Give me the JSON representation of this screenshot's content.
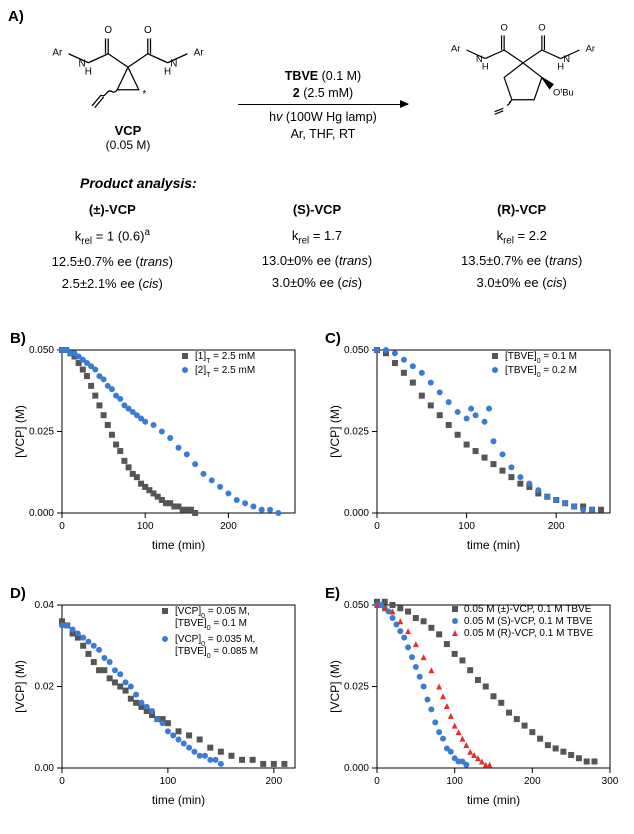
{
  "panelA": {
    "label": "A)",
    "reactant_label": "VCP",
    "reactant_conc": "(0.05 M)",
    "arrow_top_line1": "TBVE (0.1 M)",
    "arrow_top_line2_bold": "2",
    "arrow_top_line2_rest": " (2.5 mM)",
    "arrow_bot_line1_pre": "h",
    "arrow_bot_line1_it": "v",
    "arrow_bot_line1_post": " (100W Hg lamp)",
    "arrow_bot_line2": "Ar, THF, RT",
    "pa_title": "Product analysis:",
    "columns": [
      {
        "head": "(±)-VCP",
        "krel": "k_rel = 1 (0.6)^a",
        "ee_trans": "12.5±0.7% ee (trans)",
        "ee_cis": "2.5±2.1% ee (cis)"
      },
      {
        "head": "(S)-VCP",
        "krel": "k_rel = 1.7",
        "ee_trans": "13.0±0% ee (trans)",
        "ee_cis": "3.0±0% ee (cis)"
      },
      {
        "head": "(R)-VCP",
        "krel": "k_rel = 2.2",
        "ee_trans": "13.5±0.7% ee (trans)",
        "ee_cis": "3.0±0% ee (cis)"
      }
    ]
  },
  "chartCommon": {
    "xlabel": "time (min)",
    "ylabel": "[VCP] (M)",
    "grid_color": "#e0e0e0",
    "bg": "#ffffff",
    "axis_color": "#000000",
    "series_colors": {
      "gray": "#555555",
      "blue": "#3a7bd5",
      "red": "#e03030"
    },
    "marker_size": 3
  },
  "panelB": {
    "label": "B)",
    "xlim": [
      0,
      280
    ],
    "xticks": [
      0,
      100,
      200
    ],
    "ylim": [
      0,
      0.05
    ],
    "yticks": [
      0,
      0.025,
      0.05
    ],
    "ytick_labels": [
      "0.000",
      "0.025",
      "0.050"
    ],
    "legend": [
      {
        "marker": "square",
        "color": "gray",
        "label": "[1]_T = 2.5 mM"
      },
      {
        "marker": "circle",
        "color": "blue",
        "label": "[2]_T = 2.5 mM"
      }
    ],
    "series": [
      {
        "color": "gray",
        "marker": "square",
        "points": [
          [
            0,
            0.05
          ],
          [
            5,
            0.05
          ],
          [
            10,
            0.049
          ],
          [
            15,
            0.048
          ],
          [
            20,
            0.046
          ],
          [
            25,
            0.044
          ],
          [
            30,
            0.042
          ],
          [
            35,
            0.039
          ],
          [
            40,
            0.036
          ],
          [
            45,
            0.033
          ],
          [
            50,
            0.03
          ],
          [
            55,
            0.027
          ],
          [
            60,
            0.024
          ],
          [
            65,
            0.021
          ],
          [
            70,
            0.019
          ],
          [
            75,
            0.016
          ],
          [
            80,
            0.014
          ],
          [
            85,
            0.012
          ],
          [
            90,
            0.011
          ],
          [
            95,
            0.009
          ],
          [
            100,
            0.008
          ],
          [
            105,
            0.007
          ],
          [
            110,
            0.006
          ],
          [
            115,
            0.005
          ],
          [
            120,
            0.004
          ],
          [
            125,
            0.003
          ],
          [
            130,
            0.003
          ],
          [
            135,
            0.002
          ],
          [
            140,
            0.002
          ],
          [
            145,
            0.001
          ],
          [
            150,
            0.001
          ],
          [
            155,
            0.001
          ],
          [
            160,
            0.0
          ]
        ]
      },
      {
        "color": "blue",
        "marker": "circle",
        "points": [
          [
            0,
            0.05
          ],
          [
            5,
            0.05
          ],
          [
            10,
            0.049
          ],
          [
            15,
            0.049
          ],
          [
            20,
            0.048
          ],
          [
            25,
            0.047
          ],
          [
            30,
            0.046
          ],
          [
            35,
            0.045
          ],
          [
            40,
            0.044
          ],
          [
            45,
            0.042
          ],
          [
            50,
            0.041
          ],
          [
            55,
            0.039
          ],
          [
            60,
            0.038
          ],
          [
            65,
            0.036
          ],
          [
            70,
            0.035
          ],
          [
            75,
            0.033
          ],
          [
            80,
            0.032
          ],
          [
            85,
            0.031
          ],
          [
            90,
            0.03
          ],
          [
            95,
            0.029
          ],
          [
            100,
            0.028
          ],
          [
            110,
            0.027
          ],
          [
            120,
            0.025
          ],
          [
            130,
            0.023
          ],
          [
            140,
            0.02
          ],
          [
            150,
            0.018
          ],
          [
            160,
            0.015
          ],
          [
            170,
            0.012
          ],
          [
            180,
            0.01
          ],
          [
            190,
            0.008
          ],
          [
            200,
            0.006
          ],
          [
            210,
            0.004
          ],
          [
            220,
            0.003
          ],
          [
            230,
            0.002
          ],
          [
            240,
            0.001
          ],
          [
            250,
            0.001
          ],
          [
            260,
            0.0
          ]
        ]
      }
    ]
  },
  "panelC": {
    "label": "C)",
    "xlim": [
      0,
      260
    ],
    "xticks": [
      0,
      100,
      200
    ],
    "ylim": [
      0,
      0.05
    ],
    "yticks": [
      0,
      0.025,
      0.05
    ],
    "ytick_labels": [
      "0.000",
      "0.025",
      "0.050"
    ],
    "legend": [
      {
        "marker": "square",
        "color": "gray",
        "label": "[TBVE]_0 = 0.1 M"
      },
      {
        "marker": "circle",
        "color": "blue",
        "label": "[TBVE]_0 = 0.2 M"
      }
    ],
    "series": [
      {
        "color": "gray",
        "marker": "square",
        "points": [
          [
            0,
            0.05
          ],
          [
            10,
            0.049
          ],
          [
            20,
            0.046
          ],
          [
            30,
            0.043
          ],
          [
            40,
            0.04
          ],
          [
            50,
            0.036
          ],
          [
            60,
            0.033
          ],
          [
            70,
            0.03
          ],
          [
            80,
            0.027
          ],
          [
            90,
            0.024
          ],
          [
            100,
            0.021
          ],
          [
            110,
            0.019
          ],
          [
            120,
            0.017
          ],
          [
            130,
            0.015
          ],
          [
            140,
            0.013
          ],
          [
            150,
            0.011
          ],
          [
            160,
            0.009
          ],
          [
            170,
            0.008
          ],
          [
            180,
            0.006
          ],
          [
            190,
            0.005
          ],
          [
            200,
            0.004
          ],
          [
            210,
            0.003
          ],
          [
            220,
            0.002
          ],
          [
            230,
            0.002
          ],
          [
            240,
            0.001
          ],
          [
            250,
            0.001
          ]
        ]
      },
      {
        "color": "blue",
        "marker": "circle",
        "points": [
          [
            0,
            0.05
          ],
          [
            10,
            0.05
          ],
          [
            20,
            0.049
          ],
          [
            30,
            0.047
          ],
          [
            40,
            0.045
          ],
          [
            50,
            0.043
          ],
          [
            60,
            0.04
          ],
          [
            70,
            0.037
          ],
          [
            80,
            0.034
          ],
          [
            90,
            0.031
          ],
          [
            100,
            0.029
          ],
          [
            105,
            0.032
          ],
          [
            110,
            0.03
          ],
          [
            120,
            0.028
          ],
          [
            125,
            0.032
          ],
          [
            130,
            0.022
          ],
          [
            140,
            0.018
          ],
          [
            150,
            0.014
          ],
          [
            160,
            0.011
          ],
          [
            170,
            0.009
          ],
          [
            180,
            0.007
          ],
          [
            190,
            0.005
          ],
          [
            200,
            0.004
          ],
          [
            210,
            0.003
          ],
          [
            220,
            0.002
          ],
          [
            230,
            0.001
          ],
          [
            240,
            0.001
          ]
        ]
      }
    ]
  },
  "panelD": {
    "label": "D)",
    "xlim": [
      0,
      220
    ],
    "xticks": [
      0,
      100,
      200
    ],
    "ylim": [
      0,
      0.04
    ],
    "yticks": [
      0,
      0.02,
      0.04
    ],
    "ytick_labels": [
      "0.00",
      "0.02",
      "0.04"
    ],
    "legend": [
      {
        "marker": "square",
        "color": "gray",
        "label": "[VCP]_0 = 0.05 M,",
        "sub": "[TBVE]_0 = 0.1 M"
      },
      {
        "marker": "circle",
        "color": "blue",
        "label": "[VCP]_0 = 0.035 M,",
        "sub": "[TBVE]_0 = 0.085 M"
      }
    ],
    "series": [
      {
        "color": "gray",
        "marker": "square",
        "points": [
          [
            0,
            0.036
          ],
          [
            5,
            0.035
          ],
          [
            10,
            0.033
          ],
          [
            15,
            0.032
          ],
          [
            20,
            0.03
          ],
          [
            25,
            0.028
          ],
          [
            30,
            0.026
          ],
          [
            35,
            0.024
          ],
          [
            40,
            0.024
          ],
          [
            45,
            0.022
          ],
          [
            50,
            0.021
          ],
          [
            55,
            0.02
          ],
          [
            60,
            0.019
          ],
          [
            65,
            0.017
          ],
          [
            70,
            0.016
          ],
          [
            75,
            0.015
          ],
          [
            80,
            0.014
          ],
          [
            85,
            0.013
          ],
          [
            90,
            0.012
          ],
          [
            95,
            0.012
          ],
          [
            100,
            0.011
          ],
          [
            110,
            0.009
          ],
          [
            120,
            0.008
          ],
          [
            130,
            0.007
          ],
          [
            140,
            0.005
          ],
          [
            150,
            0.004
          ],
          [
            160,
            0.003
          ],
          [
            170,
            0.002
          ],
          [
            180,
            0.002
          ],
          [
            190,
            0.001
          ],
          [
            200,
            0.001
          ],
          [
            210,
            0.001
          ]
        ]
      },
      {
        "color": "blue",
        "marker": "circle",
        "points": [
          [
            0,
            0.035
          ],
          [
            5,
            0.035
          ],
          [
            10,
            0.034
          ],
          [
            15,
            0.033
          ],
          [
            20,
            0.032
          ],
          [
            25,
            0.031
          ],
          [
            30,
            0.03
          ],
          [
            35,
            0.029
          ],
          [
            40,
            0.027
          ],
          [
            45,
            0.026
          ],
          [
            50,
            0.024
          ],
          [
            55,
            0.023
          ],
          [
            60,
            0.021
          ],
          [
            65,
            0.02
          ],
          [
            70,
            0.018
          ],
          [
            75,
            0.016
          ],
          [
            80,
            0.015
          ],
          [
            85,
            0.014
          ],
          [
            90,
            0.012
          ],
          [
            95,
            0.011
          ],
          [
            100,
            0.009
          ],
          [
            105,
            0.008
          ],
          [
            110,
            0.007
          ],
          [
            115,
            0.006
          ],
          [
            120,
            0.005
          ],
          [
            125,
            0.004
          ],
          [
            130,
            0.003
          ],
          [
            135,
            0.003
          ],
          [
            140,
            0.002
          ],
          [
            145,
            0.002
          ],
          [
            150,
            0.001
          ]
        ]
      }
    ]
  },
  "panelE": {
    "label": "E)",
    "xlim": [
      0,
      300
    ],
    "xticks": [
      0,
      100,
      200,
      300
    ],
    "ylim": [
      0,
      0.05
    ],
    "yticks": [
      0,
      0.025,
      0.05
    ],
    "ytick_labels": [
      "0.000",
      "0.025",
      "0.050"
    ],
    "legend": [
      {
        "marker": "square",
        "color": "gray",
        "label": "0.05 M (±)-VCP, 0.1 M TBVE"
      },
      {
        "marker": "circle",
        "color": "blue",
        "label": "0.05 M (S)-VCP, 0.1 M TBVE"
      },
      {
        "marker": "triangle",
        "color": "red",
        "label": "0.05 M (R)-VCP, 0.1 M TBVE"
      }
    ],
    "series": [
      {
        "color": "gray",
        "marker": "square",
        "points": [
          [
            0,
            0.051
          ],
          [
            10,
            0.051
          ],
          [
            20,
            0.05
          ],
          [
            30,
            0.049
          ],
          [
            40,
            0.048
          ],
          [
            50,
            0.046
          ],
          [
            60,
            0.045
          ],
          [
            70,
            0.043
          ],
          [
            80,
            0.041
          ],
          [
            90,
            0.038
          ],
          [
            100,
            0.035
          ],
          [
            110,
            0.033
          ],
          [
            120,
            0.03
          ],
          [
            130,
            0.027
          ],
          [
            140,
            0.025
          ],
          [
            150,
            0.022
          ],
          [
            160,
            0.02
          ],
          [
            170,
            0.017
          ],
          [
            180,
            0.015
          ],
          [
            190,
            0.013
          ],
          [
            200,
            0.011
          ],
          [
            210,
            0.009
          ],
          [
            220,
            0.007
          ],
          [
            230,
            0.006
          ],
          [
            240,
            0.005
          ],
          [
            250,
            0.004
          ],
          [
            260,
            0.003
          ],
          [
            270,
            0.002
          ],
          [
            280,
            0.002
          ]
        ]
      },
      {
        "color": "blue",
        "marker": "circle",
        "points": [
          [
            0,
            0.05
          ],
          [
            5,
            0.05
          ],
          [
            10,
            0.049
          ],
          [
            15,
            0.048
          ],
          [
            20,
            0.046
          ],
          [
            25,
            0.044
          ],
          [
            30,
            0.042
          ],
          [
            35,
            0.04
          ],
          [
            40,
            0.037
          ],
          [
            45,
            0.034
          ],
          [
            50,
            0.031
          ],
          [
            55,
            0.028
          ],
          [
            60,
            0.025
          ],
          [
            65,
            0.021
          ],
          [
            70,
            0.018
          ],
          [
            75,
            0.014
          ],
          [
            80,
            0.011
          ],
          [
            85,
            0.009
          ],
          [
            90,
            0.006
          ],
          [
            95,
            0.005
          ],
          [
            100,
            0.003
          ],
          [
            105,
            0.002
          ],
          [
            110,
            0.002
          ],
          [
            115,
            0.001
          ]
        ]
      },
      {
        "color": "red",
        "marker": "triangle",
        "points": [
          [
            0,
            0.05
          ],
          [
            10,
            0.049
          ],
          [
            20,
            0.048
          ],
          [
            30,
            0.045
          ],
          [
            40,
            0.042
          ],
          [
            50,
            0.038
          ],
          [
            60,
            0.034
          ],
          [
            70,
            0.03
          ],
          [
            80,
            0.025
          ],
          [
            85,
            0.022
          ],
          [
            90,
            0.019
          ],
          [
            95,
            0.016
          ],
          [
            100,
            0.013
          ],
          [
            105,
            0.011
          ],
          [
            110,
            0.009
          ],
          [
            115,
            0.007
          ],
          [
            120,
            0.005
          ],
          [
            125,
            0.004
          ],
          [
            130,
            0.003
          ],
          [
            135,
            0.002
          ],
          [
            140,
            0.001
          ],
          [
            145,
            0.001
          ]
        ]
      }
    ]
  }
}
